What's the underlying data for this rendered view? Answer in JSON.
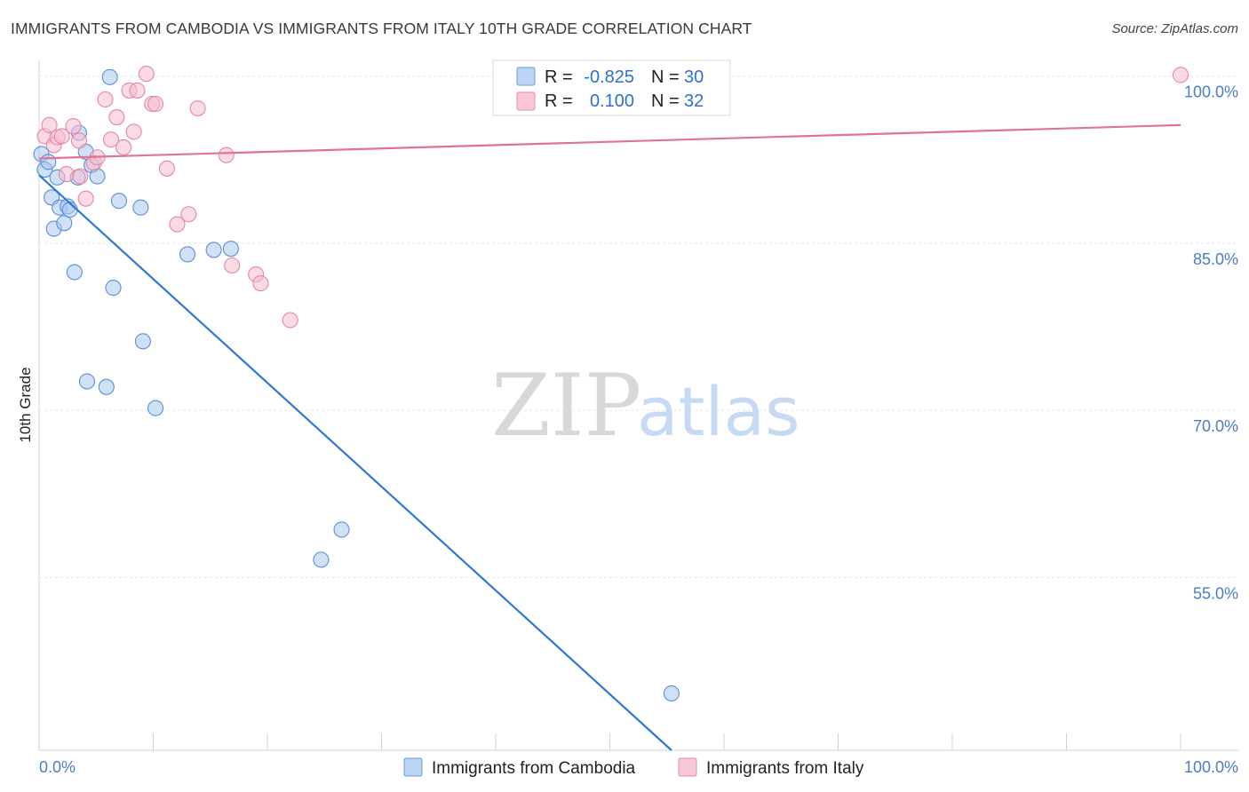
{
  "title": "IMMIGRANTS FROM CAMBODIA VS IMMIGRANTS FROM ITALY 10TH GRADE CORRELATION CHART",
  "source": "Source: ZipAtlas.com",
  "watermark": {
    "zip": "ZIP",
    "atlas": "atlas"
  },
  "legend": {
    "rows": [
      {
        "r_label": "R =",
        "r_value": "-0.825",
        "n_label": "N =",
        "n_value": "30"
      },
      {
        "r_label": "R =",
        "r_value": "0.100",
        "n_label": "N =",
        "n_value": "32"
      }
    ]
  },
  "chart_data": {
    "type": "scatter",
    "xlabel": "",
    "ylabel": "10th Grade",
    "xlim": [
      0,
      100
    ],
    "ylim": [
      39.5,
      102.2
    ],
    "x_tick_labels": [
      "0.0%",
      "100.0%"
    ],
    "y_ticks": [
      {
        "value": 100,
        "label": "100.0%"
      },
      {
        "value": 85,
        "label": "85.0%"
      },
      {
        "value": 70,
        "label": "70.0%"
      },
      {
        "value": 55,
        "label": "55.0%"
      }
    ],
    "grid": true,
    "series": [
      {
        "name": "Immigrants from Cambodia",
        "color": "#a9c8ef",
        "stroke": "#5b8fd6",
        "line_color": "#2e78d6",
        "trend": {
          "x": [
            0.0,
            55.4
          ],
          "y": [
            91.1,
            39.5
          ]
        },
        "points": [
          [
            0.2,
            93.0
          ],
          [
            0.5,
            91.6
          ],
          [
            0.8,
            92.3
          ],
          [
            1.1,
            89.1
          ],
          [
            1.3,
            86.3
          ],
          [
            1.6,
            90.9
          ],
          [
            1.8,
            88.2
          ],
          [
            2.2,
            86.8
          ],
          [
            2.5,
            88.3
          ],
          [
            2.7,
            88.0
          ],
          [
            3.1,
            82.4
          ],
          [
            3.4,
            90.9
          ],
          [
            3.5,
            94.9
          ],
          [
            4.1,
            93.2
          ],
          [
            4.2,
            72.6
          ],
          [
            4.6,
            92.0
          ],
          [
            5.1,
            91.0
          ],
          [
            5.9,
            72.1
          ],
          [
            6.2,
            99.9
          ],
          [
            6.5,
            81.0
          ],
          [
            7.0,
            88.8
          ],
          [
            8.9,
            88.2
          ],
          [
            9.1,
            76.2
          ],
          [
            10.2,
            70.2
          ],
          [
            13.0,
            84.0
          ],
          [
            15.3,
            84.4
          ],
          [
            16.8,
            84.5
          ],
          [
            24.7,
            56.6
          ],
          [
            26.5,
            59.3
          ],
          [
            55.4,
            44.6
          ]
        ]
      },
      {
        "name": "Immigrants from Italy",
        "color": "#f6bccd",
        "stroke": "#e487a5",
        "line_color": "#e0739a",
        "trend": {
          "x": [
            0.0,
            100.0
          ],
          "y": [
            92.6,
            95.6
          ]
        },
        "points": [
          [
            0.5,
            94.6
          ],
          [
            0.9,
            95.6
          ],
          [
            1.3,
            93.8
          ],
          [
            1.6,
            94.5
          ],
          [
            2.0,
            94.6
          ],
          [
            2.4,
            91.2
          ],
          [
            3.0,
            95.5
          ],
          [
            3.5,
            94.2
          ],
          [
            3.6,
            91.0
          ],
          [
            4.1,
            89.0
          ],
          [
            4.8,
            92.2
          ],
          [
            5.1,
            92.7
          ],
          [
            5.8,
            97.9
          ],
          [
            6.3,
            94.3
          ],
          [
            6.8,
            96.3
          ],
          [
            7.4,
            93.6
          ],
          [
            7.9,
            98.7
          ],
          [
            8.3,
            95.0
          ],
          [
            8.6,
            98.7
          ],
          [
            9.4,
            100.2
          ],
          [
            9.9,
            97.5
          ],
          [
            10.2,
            97.5
          ],
          [
            11.2,
            91.7
          ],
          [
            12.1,
            86.7
          ],
          [
            13.1,
            87.6
          ],
          [
            13.9,
            97.1
          ],
          [
            16.4,
            92.9
          ],
          [
            16.9,
            83.0
          ],
          [
            19.0,
            82.2
          ],
          [
            19.4,
            81.4
          ],
          [
            22.0,
            78.1
          ],
          [
            100.0,
            100.1
          ]
        ]
      }
    ]
  }
}
